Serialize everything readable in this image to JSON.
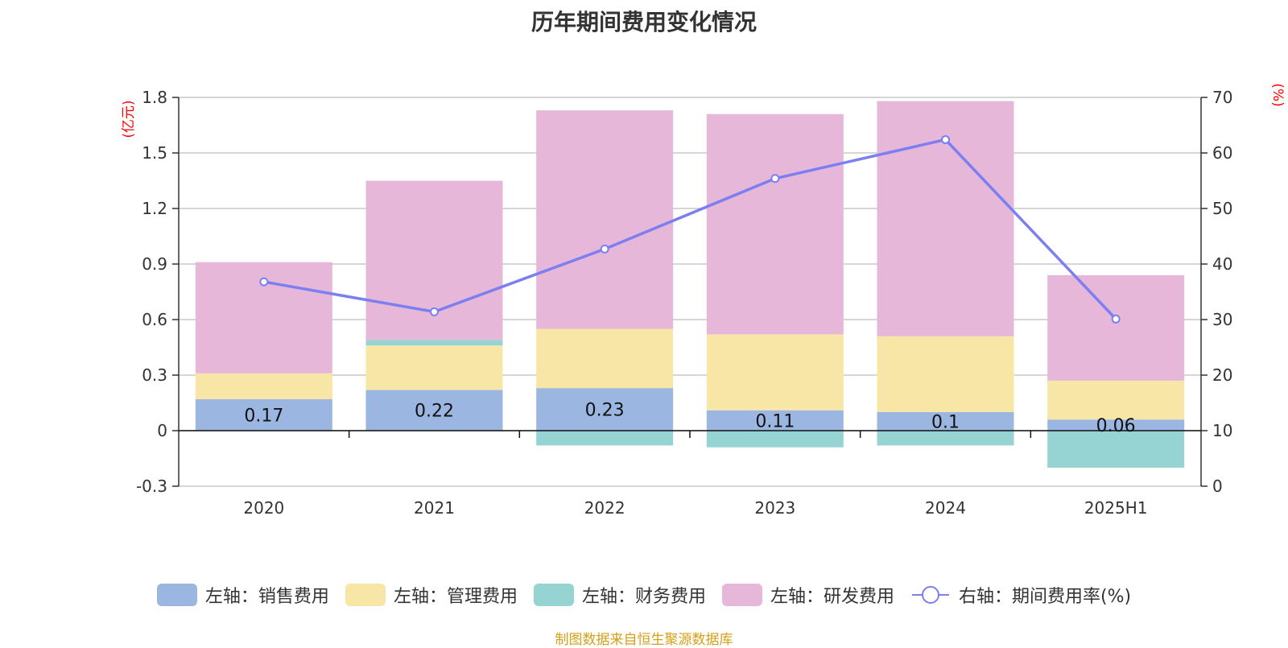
{
  "chart_data": {
    "type": "bar",
    "title": "历年期间费用变化情况",
    "categories": [
      "2020",
      "2021",
      "2022",
      "2023",
      "2024",
      "2025H1"
    ],
    "series": [
      {
        "name": "左轴：销售费用",
        "axis": "left",
        "type": "bar",
        "color": "#9bb7e1",
        "values": [
          0.17,
          0.22,
          0.23,
          0.11,
          0.1,
          0.06
        ],
        "labels": [
          "0.17",
          "0.22",
          "0.23",
          "0.11",
          "0.1",
          "0.06"
        ]
      },
      {
        "name": "左轴：管理费用",
        "axis": "left",
        "type": "bar",
        "color": "#f7e6a6",
        "values": [
          0.14,
          0.24,
          0.32,
          0.41,
          0.41,
          0.21
        ]
      },
      {
        "name": "左轴：财务费用",
        "axis": "left",
        "type": "bar",
        "color": "#96d3d3",
        "values": [
          0.0,
          0.03,
          -0.08,
          -0.09,
          -0.08,
          -0.2
        ]
      },
      {
        "name": "左轴：研发费用",
        "axis": "left",
        "type": "bar",
        "color": "#e7b7d9",
        "values": [
          0.6,
          0.86,
          1.18,
          1.19,
          1.27,
          0.57
        ]
      },
      {
        "name": "右轴：期间费用率(%)",
        "axis": "right",
        "type": "line",
        "color": "#7b7ff0",
        "values": [
          36.8,
          31.4,
          42.7,
          55.4,
          62.4,
          30.1
        ]
      }
    ],
    "y_left": {
      "unit": "(亿元)",
      "ylim": [
        -0.3,
        1.8
      ],
      "ticks": [
        "-0.3",
        "0",
        "0.3",
        "0.6",
        "0.9",
        "1.2",
        "1.5",
        "1.8"
      ]
    },
    "y_right": {
      "unit": "(%)",
      "ylim": [
        0,
        70
      ],
      "ticks": [
        "0",
        "10",
        "20",
        "30",
        "40",
        "50",
        "60",
        "70"
      ]
    },
    "grid": true,
    "legend_position": "bottom"
  },
  "source_note": "制图数据来自恒生聚源数据库"
}
